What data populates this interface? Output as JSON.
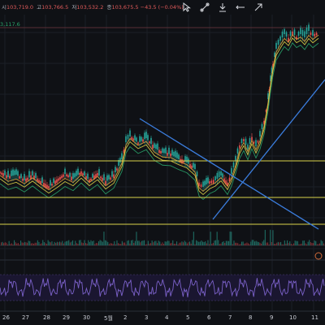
{
  "ohlc": {
    "open_label": "시",
    "open_value": "103,719.0",
    "high_label": "고",
    "high_value": "103,766.5",
    "low_label": "저",
    "low_value": "103,532.2",
    "close_label": "종",
    "close_value": "103,675.5",
    "change": "−43.5 (−0.04%)"
  },
  "ma_label": "3,117.6",
  "toolbar": {
    "icons": [
      "cursor-icon",
      "measure-icon",
      "undo-icon",
      "minus-icon",
      "arrow-icon"
    ]
  },
  "xaxis": {
    "ticks": [
      "26",
      "27",
      "28",
      "29",
      "30",
      "5월",
      "2",
      "3",
      "4",
      "5",
      "6",
      "7",
      "8",
      "9",
      "10",
      "11"
    ]
  },
  "colors": {
    "background": "#0f1115",
    "up_candle": "#26a69a",
    "down_candle": "#ef5350",
    "support_line": "#d9d24b",
    "trend_line": "#3b7ddd",
    "rsi": "#7b61c9"
  },
  "chart_data": {
    "type": "candlestick"
  }
}
